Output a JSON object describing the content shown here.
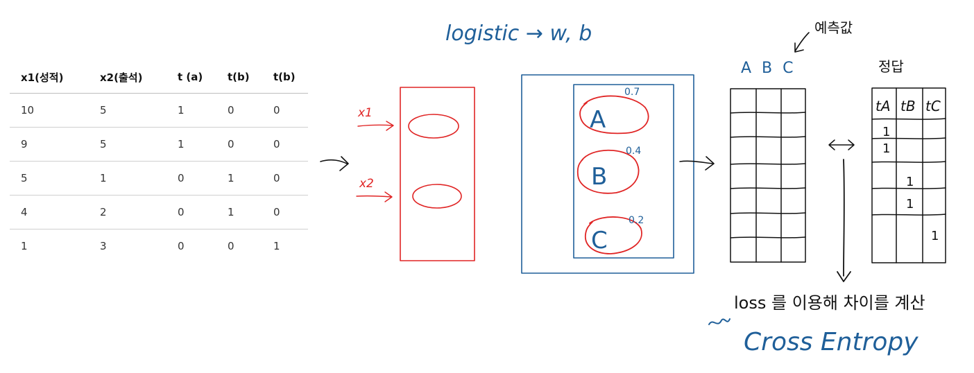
{
  "table": {
    "headers": [
      "x1(성적)",
      "x2(출석)",
      "t (a)",
      "t(b)",
      "t(b)"
    ],
    "rows": [
      [
        "10",
        "5",
        "1",
        "0",
        "0"
      ],
      [
        "9",
        "5",
        "1",
        "0",
        "0"
      ],
      [
        "5",
        "1",
        "0",
        "1",
        "0"
      ],
      [
        "4",
        "2",
        "0",
        "1",
        "0"
      ],
      [
        "1",
        "3",
        "0",
        "0",
        "1"
      ]
    ]
  },
  "annotations": {
    "logistic": "logistic → w, b",
    "prediction": "예측값",
    "abc": "A B C",
    "answer": "정답",
    "x1": "x1",
    "x2": "x2",
    "class_a": "A",
    "class_b": "B",
    "class_c": "C",
    "prob_a": "0.7",
    "prob_b": "0.4",
    "prob_c": "0.2",
    "t_a": "tA",
    "t_b": "tB",
    "t_c": "tC",
    "answer_marks": [
      "1",
      "1",
      "1",
      "1",
      "1"
    ],
    "loss_text": "loss 를 이용해 차이를 계산",
    "cross_entropy": "Cross Entropy"
  },
  "colors": {
    "red": "#e02424",
    "blue": "#1f5f99",
    "ink": "#111111"
  }
}
